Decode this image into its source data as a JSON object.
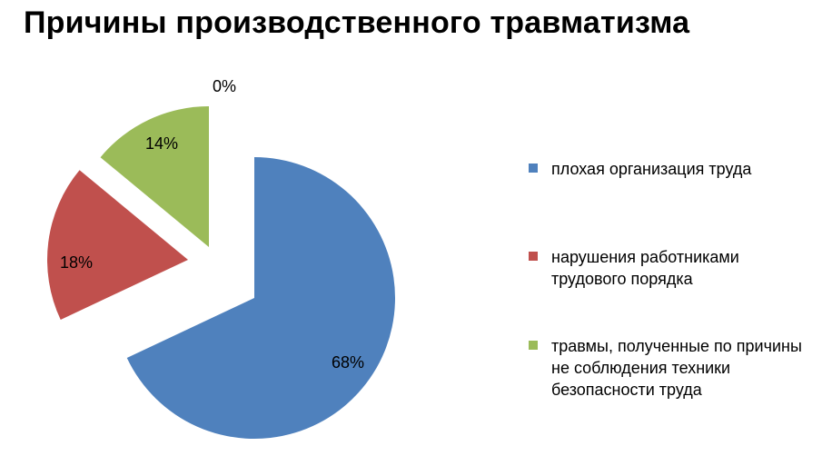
{
  "chart_data": {
    "type": "pie",
    "title": "Причины производственного травматизма",
    "categories": [
      "плохая организация труда",
      "нарушения работниками трудового порядка",
      "травмы, полученные по причины не соблюдения техники безопасности труда",
      ""
    ],
    "values": [
      68,
      18,
      14,
      0
    ],
    "data_labels": [
      "68%",
      "18%",
      "14%",
      "0%"
    ],
    "colors": [
      "#4F81BD",
      "#C0504D",
      "#9BBB59",
      "#8064A2"
    ],
    "exploded": true,
    "legend_position": "right"
  },
  "legend": [
    {
      "label": "плохая организация труда",
      "color": "#4F81BD"
    },
    {
      "label": "нарушения работниками трудового порядка",
      "color": "#C0504D"
    },
    {
      "label": "травмы, полученные по причины не соблюдения техники безопасности труда",
      "color": "#9BBB59"
    }
  ]
}
